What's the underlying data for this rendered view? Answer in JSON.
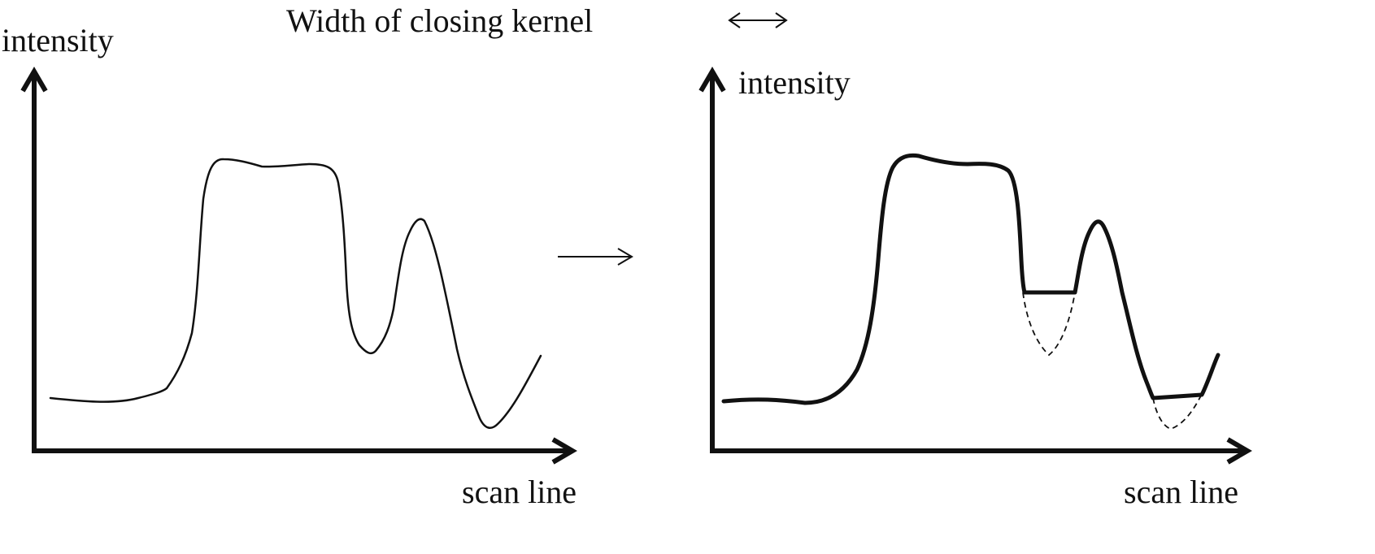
{
  "caption": {
    "text": "Width of closing kernel",
    "kernel_width_symbol": "↔"
  },
  "left_plot": {
    "y_axis_label": "intensity",
    "x_axis_label": "scan line"
  },
  "transition_arrow": "→",
  "right_plot": {
    "y_axis_label": "intensity",
    "x_axis_label": "scan line"
  },
  "colors": {
    "ink": "#111111",
    "background": "#ffffff"
  }
}
